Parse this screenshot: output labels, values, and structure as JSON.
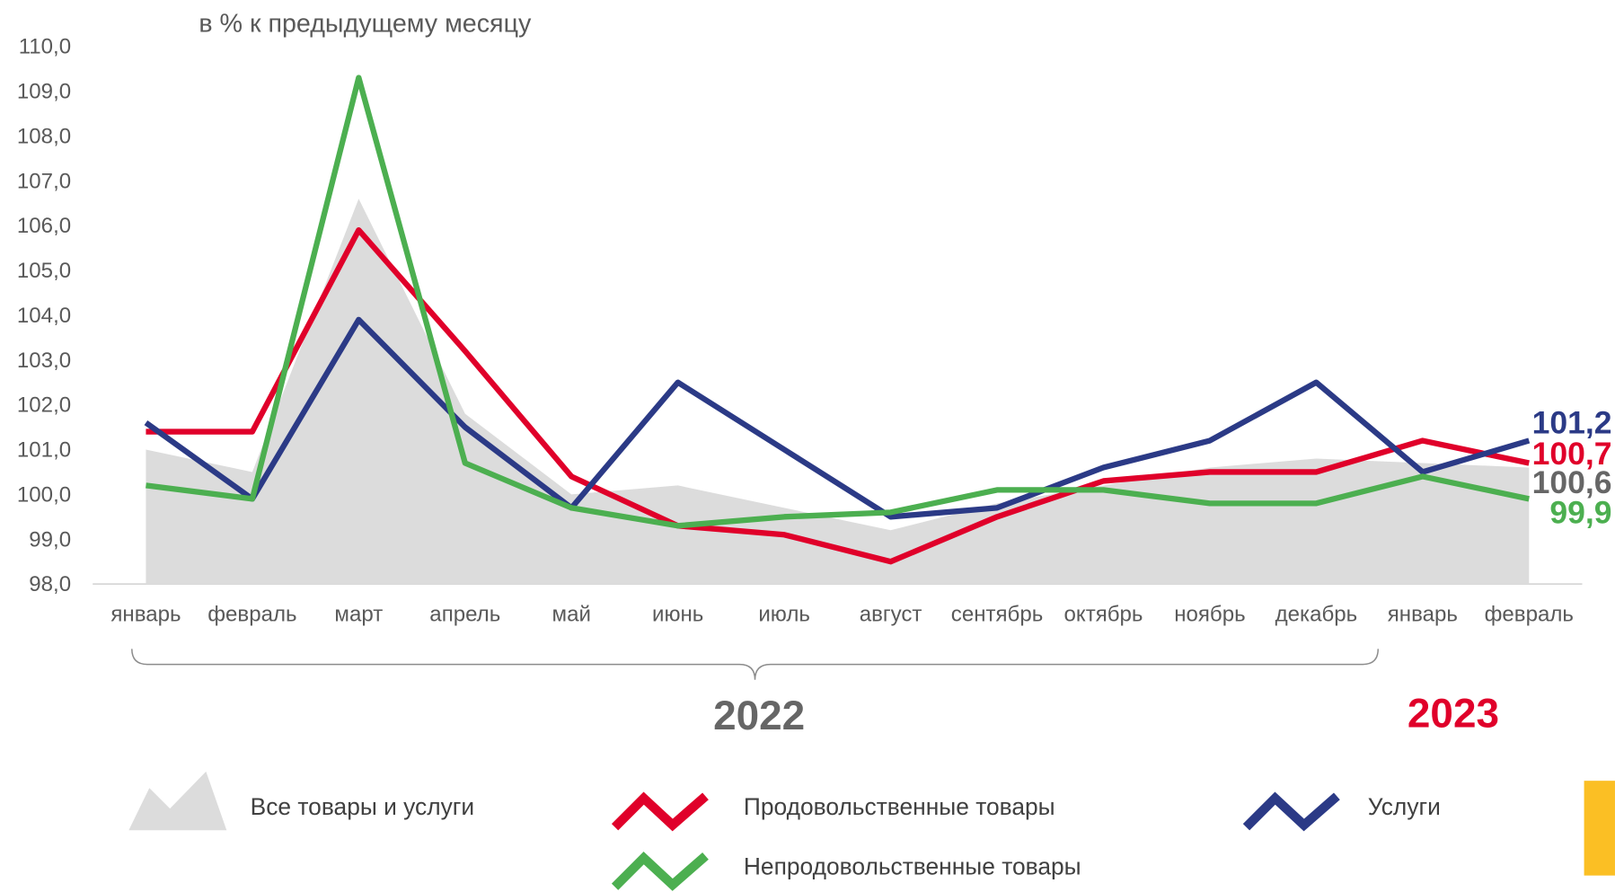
{
  "chart_data": {
    "type": "line",
    "subtitle": "в % к предыдущему месяцу",
    "categories": [
      "январь",
      "февраль",
      "март",
      "апрель",
      "май",
      "июнь",
      "июль",
      "август",
      "сентябрь",
      "октябрь",
      "ноябрь",
      "декабрь",
      "январь",
      "февраль"
    ],
    "series": [
      {
        "name": "Все товары и услуги",
        "type": "area",
        "color": "#dcdcdc",
        "label_color": "#666666",
        "values": [
          101.0,
          100.5,
          106.6,
          101.8,
          100.0,
          100.2,
          99.7,
          99.2,
          99.8,
          100.2,
          100.6,
          100.8,
          100.7,
          100.6
        ],
        "value_labels": [
          null,
          null,
          null,
          null,
          null,
          null,
          null,
          null,
          null,
          null,
          null,
          null,
          null,
          "100,6"
        ]
      },
      {
        "name": "Продовольственные товары",
        "type": "line",
        "color": "#e0002a",
        "label_color": "#e0002a",
        "values": [
          101.4,
          101.4,
          105.9,
          103.2,
          100.4,
          99.3,
          99.1,
          98.5,
          99.5,
          100.3,
          100.5,
          100.5,
          101.2,
          100.7
        ],
        "value_labels": [
          null,
          null,
          null,
          null,
          null,
          null,
          null,
          null,
          null,
          null,
          null,
          null,
          null,
          "100,7"
        ]
      },
      {
        "name": "Услуги",
        "type": "line",
        "color": "#2b3a86",
        "label_color": "#2b3a86",
        "values": [
          101.6,
          99.9,
          103.9,
          101.5,
          99.7,
          102.5,
          101.0,
          99.5,
          99.7,
          100.6,
          101.2,
          102.5,
          100.5,
          101.2
        ],
        "value_labels": [
          null,
          null,
          null,
          null,
          null,
          null,
          null,
          null,
          null,
          null,
          null,
          null,
          null,
          "101,2"
        ]
      },
      {
        "name": "Непродовольственные товары",
        "type": "line",
        "color": "#4caf50",
        "label_color": "#4caf50",
        "values": [
          100.2,
          99.9,
          109.3,
          100.7,
          99.7,
          99.3,
          99.5,
          99.6,
          100.1,
          100.1,
          99.8,
          99.8,
          100.4,
          99.9
        ],
        "value_labels": [
          null,
          null,
          null,
          null,
          null,
          null,
          null,
          null,
          null,
          null,
          null,
          null,
          null,
          "99,9"
        ]
      }
    ],
    "annotations": [
      "2022",
      "2023"
    ],
    "ylim": [
      98,
      110
    ],
    "yticks": [
      {
        "value": 98,
        "label": "98,0"
      },
      {
        "value": 99,
        "label": "99,0"
      },
      {
        "value": 100,
        "label": "100,0"
      },
      {
        "value": 101,
        "label": "101,0"
      },
      {
        "value": 102,
        "label": "102,0"
      },
      {
        "value": 103,
        "label": "103,0"
      },
      {
        "value": 104,
        "label": "104,0"
      },
      {
        "value": 105,
        "label": "105,0"
      },
      {
        "value": 106,
        "label": "106,0"
      },
      {
        "value": 107,
        "label": "107,0"
      },
      {
        "value": 108,
        "label": "108,0"
      },
      {
        "value": 109,
        "label": "109,0"
      },
      {
        "value": 110,
        "label": "110,0"
      }
    ],
    "grid": false
  }
}
